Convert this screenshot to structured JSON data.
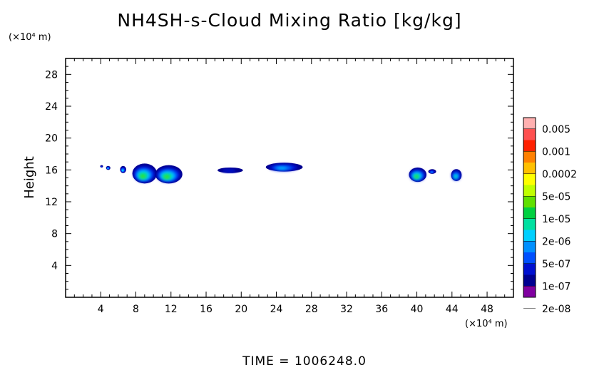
{
  "chart_data": {
    "type": "heatmap",
    "title": "NH4SH-s-Cloud Mixing Ratio [kg/kg]",
    "ylabel": "Height",
    "xunit": "(×10⁴ m)",
    "yunit": "(×10⁴ m)",
    "xlim": [
      0,
      51
    ],
    "ylim": [
      0,
      30
    ],
    "xticks": [
      "4",
      "8",
      "12",
      "16",
      "20",
      "24",
      "28",
      "32",
      "36",
      "40",
      "44",
      "48"
    ],
    "yticks": [
      "4",
      "8",
      "12",
      "16",
      "20",
      "24",
      "28"
    ],
    "colorbar": {
      "labels": [
        "0.005",
        "0.001",
        "0.0002",
        "5e-05",
        "1e-05",
        "2e-06",
        "5e-07",
        "1e-07",
        "2e-08"
      ],
      "colors": [
        "#ffb0b0",
        "#ff5050",
        "#ff2000",
        "#ff8000",
        "#ffc000",
        "#ffff00",
        "#c0ff00",
        "#60e000",
        "#00d040",
        "#00e0a0",
        "#00d0ff",
        "#0090ff",
        "#0050ff",
        "#0010d0",
        "#000090",
        "#8000a0"
      ]
    },
    "clouds": [
      {
        "x": [
          4.0,
          4.2
        ],
        "y": [
          16.3,
          16.6
        ],
        "peak": "1e-07"
      },
      {
        "x": [
          4.6,
          5.1
        ],
        "y": [
          16.0,
          16.5
        ],
        "peak": "2e-06"
      },
      {
        "x": [
          6.2,
          6.9
        ],
        "y": [
          15.6,
          16.5
        ],
        "peak": "2e-06"
      },
      {
        "x": [
          7.6,
          10.4
        ],
        "y": [
          14.3,
          16.8
        ],
        "peak": "5e-05"
      },
      {
        "x": [
          10.2,
          13.3
        ],
        "y": [
          14.3,
          16.6
        ],
        "peak": "5e-05"
      },
      {
        "x": [
          17.3,
          20.2
        ],
        "y": [
          15.6,
          16.3
        ],
        "peak": "1e-07"
      },
      {
        "x": [
          22.8,
          27.0
        ],
        "y": [
          15.8,
          16.9
        ],
        "peak": "2e-06"
      },
      {
        "x": [
          39.1,
          41.1
        ],
        "y": [
          14.5,
          16.3
        ],
        "peak": "5e-05"
      },
      {
        "x": [
          41.3,
          42.2
        ],
        "y": [
          15.5,
          16.1
        ],
        "peak": "5e-07"
      },
      {
        "x": [
          43.9,
          45.1
        ],
        "y": [
          14.6,
          16.1
        ],
        "peak": "1e-05"
      }
    ],
    "annotation": "TIME = 1006248.0"
  }
}
